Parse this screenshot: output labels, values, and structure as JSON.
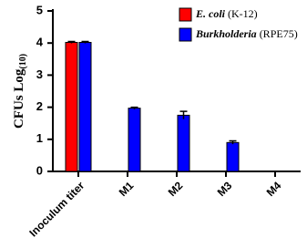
{
  "chart_data": {
    "type": "bar",
    "y_label": "CFUs Log(10)",
    "categories": [
      "Inoculum titer",
      "M1",
      "M2",
      "M3",
      "M4"
    ],
    "series": [
      {
        "name": "E. coli (K-12)",
        "color": "#ff0000",
        "values": [
          4.02,
          null,
          null,
          null,
          null
        ],
        "errors": [
          0.03,
          null,
          null,
          null,
          null
        ]
      },
      {
        "name": "Burkholderia (RPE75)",
        "color": "#0000ff",
        "values": [
          4.02,
          1.97,
          1.75,
          0.9,
          0
        ],
        "errors": [
          0.03,
          0.03,
          0.12,
          0.05,
          0
        ]
      }
    ],
    "ylim": [
      0,
      5
    ],
    "yticks": [
      0,
      1,
      2,
      3,
      4,
      5
    ],
    "grid": false,
    "legend": "top-right"
  }
}
